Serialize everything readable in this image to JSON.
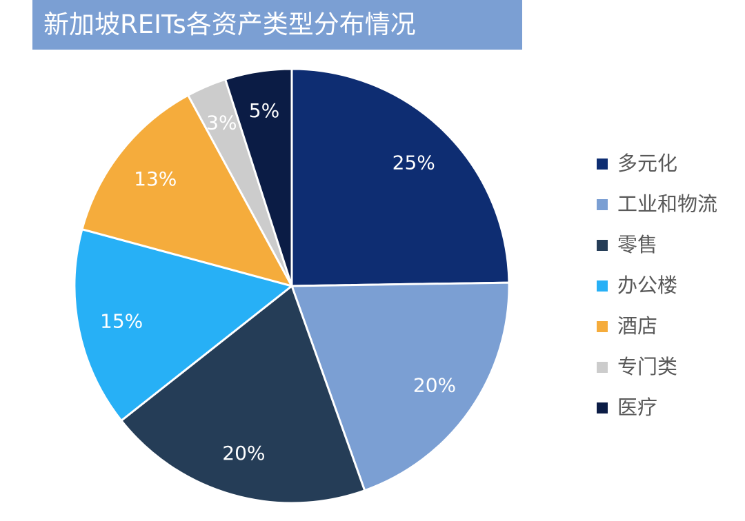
{
  "chart_data": {
    "type": "pie",
    "title": "新加坡REITs各资产类型分布情况",
    "start_angle": "12 o'clock",
    "direction": "clockwise",
    "legend_placement": "right",
    "slices": [
      {
        "name": "多元化",
        "value": 25,
        "label": "25%",
        "color": "#0e2d72"
      },
      {
        "name": "工业和物流",
        "value": 20,
        "label": "20%",
        "color": "#7b9fd3"
      },
      {
        "name": "零售",
        "value": 20,
        "label": "20%",
        "color": "#253d57"
      },
      {
        "name": "办公楼",
        "value": 15,
        "label": "15%",
        "color": "#27b0f6"
      },
      {
        "name": "酒店",
        "value": 13,
        "label": "13%",
        "color": "#f5ac3c"
      },
      {
        "name": "专门类",
        "value": 3,
        "label": "3%",
        "color": "#cccccc"
      },
      {
        "name": "医疗",
        "value": 5,
        "label": "5%",
        "color": "#0b1c45"
      }
    ]
  }
}
